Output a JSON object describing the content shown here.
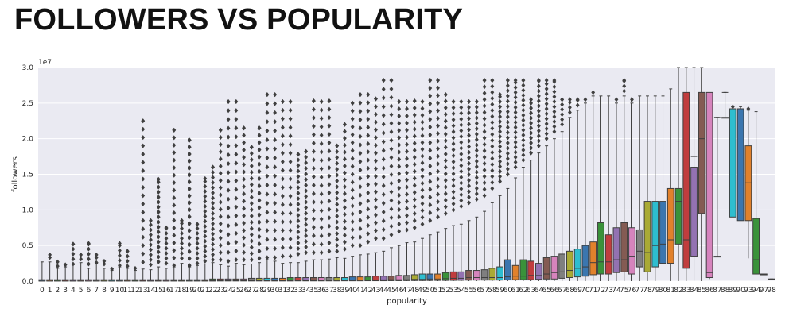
{
  "page": {
    "title": "FOLLOWERS VS POPULARITY"
  },
  "chart_data": {
    "type": "box",
    "title": "",
    "xlabel": "popularity",
    "ylabel": "followers",
    "y_offset_label": "1e7",
    "ylim": [
      0,
      3.0
    ],
    "y_ticks": [
      0.0,
      0.5,
      1.0,
      1.5,
      2.0,
      2.5,
      3.0
    ],
    "y_tick_labels": [
      "0.0",
      "0.5",
      "1.0",
      "1.5",
      "2.0",
      "2.5",
      "3.0"
    ],
    "grid": true,
    "y_unit_multiplier": 10000000,
    "categories": [
      "0",
      "1",
      "2",
      "3",
      "4",
      "5",
      "6",
      "7",
      "8",
      "9",
      "10",
      "11",
      "12",
      "13",
      "14",
      "15",
      "16",
      "17",
      "18",
      "19",
      "20",
      "21",
      "22",
      "23",
      "24",
      "25",
      "26",
      "27",
      "28",
      "29",
      "30",
      "31",
      "32",
      "33",
      "34",
      "35",
      "36",
      "37",
      "38",
      "39",
      "40",
      "41",
      "42",
      "43",
      "44",
      "45",
      "46",
      "47",
      "48",
      "49",
      "50",
      "51",
      "52",
      "53",
      "54",
      "55",
      "56",
      "57",
      "58",
      "59",
      "60",
      "61",
      "62",
      "63",
      "64",
      "65",
      "66",
      "67",
      "68",
      "69",
      "70",
      "71",
      "72",
      "73",
      "74",
      "75",
      "76",
      "77",
      "78",
      "79",
      "80",
      "81",
      "82",
      "83",
      "84",
      "85",
      "86",
      "87",
      "88",
      "89",
      "90",
      "93",
      "94",
      "97",
      "98"
    ],
    "box_colors": [
      "#3b76af",
      "#e1812c",
      "#3a923a",
      "#c03d3e",
      "#9372b2",
      "#845b53",
      "#d684bd",
      "#7f7f7f",
      "#a9aa35",
      "#2ebdcf"
    ],
    "upper_whisker": [
      0.27,
      0.27,
      0.18,
      0.2,
      0.23,
      0.26,
      0.18,
      0.25,
      0.18,
      0.15,
      0.2,
      0.18,
      0.15,
      0.17,
      0.16,
      0.2,
      0.18,
      0.2,
      0.25,
      0.2,
      0.22,
      0.24,
      0.26,
      0.23,
      0.21,
      0.25,
      0.23,
      0.24,
      0.26,
      0.3,
      0.28,
      0.25,
      0.26,
      0.26,
      0.28,
      0.3,
      0.3,
      0.31,
      0.33,
      0.32,
      0.35,
      0.37,
      0.38,
      0.4,
      0.42,
      0.47,
      0.5,
      0.54,
      0.55,
      0.6,
      0.65,
      0.69,
      0.74,
      0.78,
      0.8,
      0.85,
      0.9,
      0.98,
      1.1,
      1.2,
      1.3,
      1.45,
      1.6,
      1.7,
      1.8,
      1.9,
      2.0,
      2.1,
      2.3,
      2.4,
      2.5,
      2.6,
      2.6,
      2.6,
      2.5,
      2.6,
      2.5,
      2.6,
      2.6,
      2.6,
      2.6,
      2.7,
      3.0,
      3.0,
      3.0,
      3.0,
      0.9,
      2.3,
      2.65,
      2.4,
      2.45,
      2.4,
      2.38,
      0.1,
      0.03
    ],
    "q3": [
      0.02,
      0.02,
      0.02,
      0.02,
      0.02,
      0.02,
      0.02,
      0.02,
      0.02,
      0.02,
      0.02,
      0.02,
      0.02,
      0.02,
      0.02,
      0.02,
      0.02,
      0.02,
      0.02,
      0.02,
      0.02,
      0.02,
      0.03,
      0.03,
      0.03,
      0.03,
      0.03,
      0.04,
      0.04,
      0.04,
      0.04,
      0.04,
      0.05,
      0.05,
      0.05,
      0.05,
      0.05,
      0.05,
      0.05,
      0.05,
      0.06,
      0.06,
      0.06,
      0.07,
      0.07,
      0.07,
      0.08,
      0.08,
      0.09,
      0.1,
      0.1,
      0.1,
      0.12,
      0.13,
      0.13,
      0.15,
      0.15,
      0.16,
      0.18,
      0.2,
      0.3,
      0.22,
      0.3,
      0.28,
      0.25,
      0.33,
      0.35,
      0.38,
      0.42,
      0.45,
      0.5,
      0.55,
      0.82,
      0.65,
      0.75,
      0.82,
      0.75,
      0.72,
      1.12,
      1.12,
      1.12,
      1.3,
      1.3,
      2.65,
      1.6,
      2.65,
      2.65,
      0.35,
      2.3,
      2.42,
      2.42,
      1.9,
      0.88,
      0.1,
      0.03
    ],
    "median": [
      0.003,
      0.003,
      0.003,
      0.003,
      0.003,
      0.003,
      0.003,
      0.003,
      0.003,
      0.003,
      0.004,
      0.004,
      0.004,
      0.004,
      0.004,
      0.004,
      0.004,
      0.005,
      0.005,
      0.005,
      0.005,
      0.005,
      0.006,
      0.006,
      0.007,
      0.007,
      0.007,
      0.008,
      0.008,
      0.008,
      0.009,
      0.009,
      0.01,
      0.01,
      0.01,
      0.01,
      0.012,
      0.012,
      0.013,
      0.013,
      0.014,
      0.015,
      0.016,
      0.017,
      0.018,
      0.02,
      0.02,
      0.02,
      0.025,
      0.025,
      0.03,
      0.03,
      0.035,
      0.04,
      0.04,
      0.05,
      0.05,
      0.05,
      0.05,
      0.05,
      0.06,
      0.07,
      0.07,
      0.08,
      0.08,
      0.1,
      0.12,
      0.13,
      0.15,
      0.18,
      0.2,
      0.26,
      0.27,
      0.27,
      0.3,
      0.3,
      0.35,
      0.42,
      0.4,
      0.5,
      0.52,
      0.58,
      1.12,
      0.58,
      1.75,
      2.0,
      0.12,
      2.3,
      2.65,
      2.42,
      2.42,
      1.38,
      0.3,
      0.1,
      0.03
    ],
    "q1": [
      0.001,
      0.001,
      0.001,
      0.001,
      0.001,
      0.001,
      0.001,
      0.001,
      0.001,
      0.001,
      0.001,
      0.001,
      0.001,
      0.001,
      0.001,
      0.001,
      0.001,
      0.001,
      0.001,
      0.001,
      0.001,
      0.001,
      0.001,
      0.002,
      0.002,
      0.002,
      0.002,
      0.002,
      0.002,
      0.002,
      0.002,
      0.002,
      0.002,
      0.003,
      0.003,
      0.003,
      0.003,
      0.003,
      0.003,
      0.004,
      0.004,
      0.004,
      0.005,
      0.005,
      0.005,
      0.006,
      0.006,
      0.007,
      0.008,
      0.008,
      0.009,
      0.01,
      0.01,
      0.011,
      0.012,
      0.014,
      0.015,
      0.015,
      0.015,
      0.015,
      0.018,
      0.02,
      0.02,
      0.02,
      0.025,
      0.03,
      0.03,
      0.04,
      0.05,
      0.06,
      0.07,
      0.09,
      0.1,
      0.1,
      0.12,
      0.13,
      0.1,
      0.2,
      0.13,
      0.2,
      0.25,
      0.25,
      0.52,
      0.18,
      0.35,
      0.95,
      0.05,
      1.9,
      2.65,
      0.9,
      0.85,
      0.85,
      0.1,
      0.1,
      0.03
    ],
    "lower_whisker": [
      0,
      0,
      0,
      0,
      0,
      0,
      0,
      0,
      0,
      0,
      0,
      0,
      0,
      0,
      0,
      0,
      0,
      0,
      0,
      0,
      0,
      0,
      0,
      0,
      0,
      0,
      0,
      0,
      0,
      0,
      0,
      0,
      0,
      0,
      0,
      0,
      0,
      0,
      0,
      0,
      0,
      0,
      0,
      0,
      0,
      0,
      0,
      0,
      0,
      0,
      0,
      0,
      0,
      0,
      0,
      0,
      0,
      0,
      0,
      0,
      0,
      0,
      0,
      0,
      0,
      0,
      0,
      0,
      0,
      0,
      0,
      0,
      0,
      0,
      0,
      0,
      0,
      0,
      0,
      0,
      0,
      0,
      0,
      0,
      0,
      0,
      0.03,
      1.9,
      2.65,
      0.9,
      2.4,
      0.32,
      0.1,
      0.1,
      0.03
    ],
    "outlier_top": [
      0.27,
      0.37,
      0.27,
      0.23,
      0.52,
      0.37,
      0.53,
      0.37,
      0.28,
      0.17,
      0.53,
      0.42,
      0.18,
      2.25,
      0.85,
      1.43,
      0.75,
      2.12,
      0.85,
      1.98,
      0.8,
      1.44,
      1.6,
      2.12,
      2.52,
      2.52,
      2.15,
      1.88,
      2.15,
      2.62,
      2.62,
      2.52,
      2.52,
      1.78,
      1.82,
      2.53,
      2.52,
      2.53,
      1.9,
      2.2,
      2.5,
      2.62,
      2.62,
      2.56,
      2.82,
      2.82,
      2.52,
      2.52,
      2.53,
      2.52,
      2.82,
      2.82,
      2.62,
      2.52,
      2.52,
      2.52,
      2.52,
      2.82,
      2.82,
      2.62,
      2.82,
      2.82,
      2.82,
      2.55,
      2.82,
      2.82,
      2.82,
      2.55,
      2.55,
      2.55,
      2.55,
      2.65,
      2.55,
      2.55,
      2.55,
      2.82,
      2.55,
      2.55,
      2.55,
      2.55,
      2.55,
      0,
      0,
      0,
      0,
      0,
      0.88,
      0,
      0,
      2.45,
      2.42,
      2.42,
      0,
      0,
      0
    ],
    "outlier_bottom": [
      0.25,
      0.12,
      0.14,
      0.12,
      0.1,
      0.1,
      0.1,
      0.12,
      0.1,
      0.12,
      0.15,
      0.14,
      0.14,
      0.15,
      0.16,
      0.2,
      0.18,
      0.22,
      0.25,
      0.22,
      0.25,
      0.28,
      0.3,
      0.3,
      0.28,
      0.3,
      0.3,
      0.3,
      0.32,
      0.33,
      0.33,
      0.35,
      0.35,
      0.38,
      0.4,
      0.4,
      0.4,
      0.42,
      0.42,
      0.45,
      0.5,
      0.5,
      0.55,
      0.6,
      0.6,
      0.65,
      0.7,
      0.72,
      0.75,
      0.8,
      0.85,
      0.9,
      0.95,
      1.0,
      1.05,
      1.1,
      1.15,
      1.2,
      1.3,
      1.4,
      1.5,
      1.6,
      1.7,
      1.8,
      1.9,
      2.0,
      2.1,
      2.2,
      2.3,
      2.4,
      2.5,
      2.6,
      2.6,
      2.6,
      2.5,
      2.6,
      2.5,
      2.6,
      2.6,
      2.6,
      2.6,
      2.7,
      3.0,
      3.0,
      3.0,
      3.0,
      0.75,
      2.3,
      2.65,
      2.4,
      2.45,
      2.4,
      2.38,
      0.1,
      0.03
    ]
  }
}
